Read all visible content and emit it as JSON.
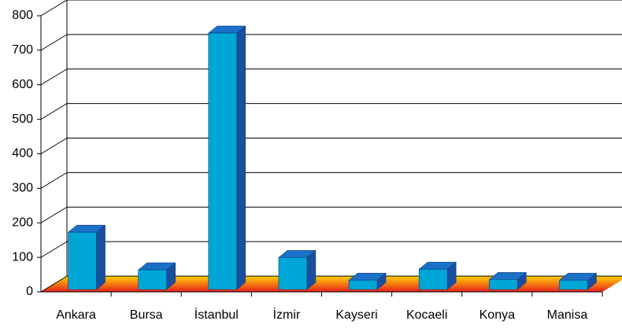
{
  "chart_data": {
    "type": "bar3d",
    "categories": [
      "Ankara",
      "Bursa",
      "İstanbul",
      "İzmir",
      "Kayseri",
      "Kocaeli",
      "Konya",
      "Manisa"
    ],
    "values": [
      166,
      57,
      743,
      93,
      27,
      59,
      29,
      27
    ],
    "color": "#00a6d6",
    "ylim": [
      0,
      800
    ],
    "yticks": [
      0,
      100,
      200,
      300,
      400,
      500,
      600,
      700,
      800
    ],
    "grid": true
  }
}
